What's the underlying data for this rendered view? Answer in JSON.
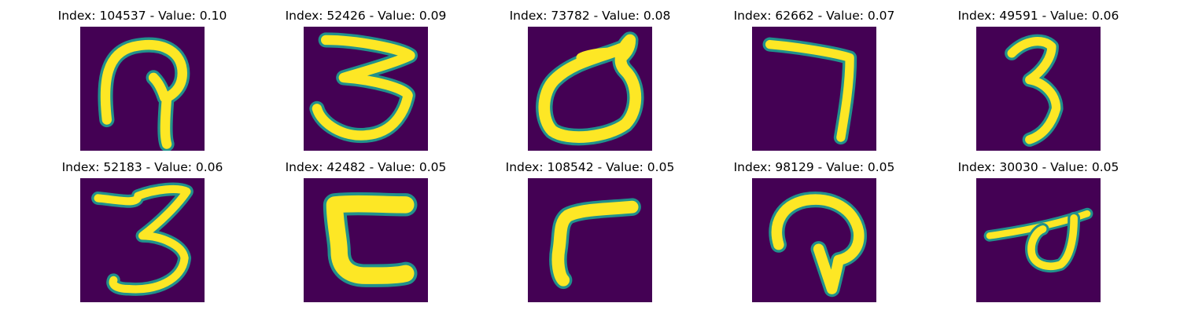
{
  "colormap": {
    "background": "#440154",
    "mid": "#21918c",
    "foreground": "#fde725"
  },
  "panels": [
    {
      "title": "Index: 104537 - Value: 0.10",
      "glyph": "digit-2-loop"
    },
    {
      "title": "Index: 52426 - Value: 0.09",
      "glyph": "digit-3"
    },
    {
      "title": "Index: 73782 - Value: 0.08",
      "glyph": "loop-a"
    },
    {
      "title": "Index: 62662 - Value: 0.07",
      "glyph": "digit-7"
    },
    {
      "title": "Index: 49591 - Value: 0.06",
      "glyph": "digit-3-narrow"
    },
    {
      "title": "Index: 52183 - Value: 0.06",
      "glyph": "digit-3-wide"
    },
    {
      "title": "Index: 42482 - Value: 0.05",
      "glyph": "bracket-shape"
    },
    {
      "title": "Index: 108542 - Value: 0.05",
      "glyph": "r-shape"
    },
    {
      "title": "Index: 98129 - Value: 0.05",
      "glyph": "hook-shape"
    },
    {
      "title": "Index: 30030 - Value: 0.05",
      "glyph": "slash-loop"
    }
  ]
}
